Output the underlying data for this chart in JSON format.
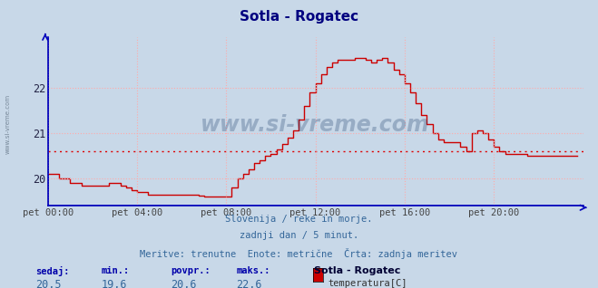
{
  "title": "Sotla - Rogatec",
  "title_color": "#000080",
  "background_color": "#c8d8e8",
  "plot_bg_color": "#c8d8e8",
  "line_color": "#cc0000",
  "avg_line_color": "#dd0000",
  "grid_color": "#ffaaaa",
  "axis_color": "#0000bb",
  "yticks": [
    20,
    21,
    22
  ],
  "ylim": [
    19.4,
    23.1
  ],
  "xlim_hours": [
    0,
    24
  ],
  "xtick_labels": [
    "pet 00:00",
    "pet 04:00",
    "pet 08:00",
    "pet 12:00",
    "pet 16:00",
    "pet 20:00"
  ],
  "xtick_positions": [
    0,
    4,
    8,
    12,
    16,
    20
  ],
  "avg_value": 20.6,
  "watermark_text": "www.si-vreme.com",
  "subtitle_lines": [
    "Slovenija / reke in morje.",
    "zadnji dan / 5 minut.",
    "Meritve: trenutne  Enote: metrične  Črta: zadnja meritev"
  ],
  "footer_labels": [
    "sedaj:",
    "min.:",
    "povpr.:",
    "maks.:"
  ],
  "footer_values": [
    "20,5",
    "19,6",
    "20,6",
    "22,6"
  ],
  "legend_station": "Sotla - Rogatec",
  "legend_label": "temperatura[C]",
  "legend_color": "#cc0000",
  "watermark_color": "#1a3a6a",
  "left_label": "www.si-vreme.com",
  "time_series": [
    [
      0.0,
      20.1
    ],
    [
      0.25,
      20.1
    ],
    [
      0.5,
      20.0
    ],
    [
      0.75,
      20.0
    ],
    [
      1.0,
      19.9
    ],
    [
      1.25,
      19.9
    ],
    [
      1.5,
      19.85
    ],
    [
      1.75,
      19.85
    ],
    [
      2.0,
      19.85
    ],
    [
      2.25,
      19.85
    ],
    [
      2.5,
      19.85
    ],
    [
      2.75,
      19.9
    ],
    [
      3.0,
      19.9
    ],
    [
      3.25,
      19.85
    ],
    [
      3.5,
      19.8
    ],
    [
      3.75,
      19.75
    ],
    [
      4.0,
      19.7
    ],
    [
      4.25,
      19.7
    ],
    [
      4.5,
      19.65
    ],
    [
      4.75,
      19.65
    ],
    [
      5.0,
      19.65
    ],
    [
      5.25,
      19.65
    ],
    [
      5.5,
      19.65
    ],
    [
      5.75,
      19.65
    ],
    [
      6.0,
      19.65
    ],
    [
      6.25,
      19.65
    ],
    [
      6.5,
      19.65
    ],
    [
      6.75,
      19.62
    ],
    [
      7.0,
      19.6
    ],
    [
      7.25,
      19.6
    ],
    [
      7.5,
      19.6
    ],
    [
      7.75,
      19.6
    ],
    [
      8.0,
      19.6
    ],
    [
      8.1,
      19.6
    ],
    [
      8.25,
      19.8
    ],
    [
      8.5,
      20.0
    ],
    [
      8.75,
      20.1
    ],
    [
      9.0,
      20.2
    ],
    [
      9.25,
      20.35
    ],
    [
      9.5,
      20.4
    ],
    [
      9.75,
      20.5
    ],
    [
      10.0,
      20.55
    ],
    [
      10.25,
      20.65
    ],
    [
      10.5,
      20.75
    ],
    [
      10.75,
      20.9
    ],
    [
      11.0,
      21.05
    ],
    [
      11.25,
      21.3
    ],
    [
      11.5,
      21.6
    ],
    [
      11.75,
      21.9
    ],
    [
      12.0,
      22.1
    ],
    [
      12.25,
      22.3
    ],
    [
      12.5,
      22.45
    ],
    [
      12.75,
      22.55
    ],
    [
      13.0,
      22.6
    ],
    [
      13.25,
      22.6
    ],
    [
      13.5,
      22.6
    ],
    [
      13.75,
      22.65
    ],
    [
      14.0,
      22.65
    ],
    [
      14.25,
      22.6
    ],
    [
      14.5,
      22.55
    ],
    [
      14.75,
      22.6
    ],
    [
      15.0,
      22.65
    ],
    [
      15.25,
      22.55
    ],
    [
      15.5,
      22.4
    ],
    [
      15.75,
      22.3
    ],
    [
      16.0,
      22.1
    ],
    [
      16.25,
      21.9
    ],
    [
      16.5,
      21.65
    ],
    [
      16.75,
      21.4
    ],
    [
      17.0,
      21.2
    ],
    [
      17.25,
      21.0
    ],
    [
      17.5,
      20.85
    ],
    [
      17.75,
      20.8
    ],
    [
      18.0,
      20.8
    ],
    [
      18.25,
      20.8
    ],
    [
      18.5,
      20.7
    ],
    [
      18.75,
      20.6
    ],
    [
      19.0,
      21.0
    ],
    [
      19.25,
      21.05
    ],
    [
      19.5,
      21.0
    ],
    [
      19.75,
      20.85
    ],
    [
      20.0,
      20.7
    ],
    [
      20.25,
      20.6
    ],
    [
      20.5,
      20.55
    ],
    [
      20.75,
      20.55
    ],
    [
      21.0,
      20.55
    ],
    [
      21.25,
      20.55
    ],
    [
      21.5,
      20.5
    ],
    [
      21.75,
      20.5
    ],
    [
      22.0,
      20.5
    ],
    [
      22.25,
      20.5
    ],
    [
      22.5,
      20.5
    ],
    [
      22.75,
      20.5
    ],
    [
      23.0,
      20.5
    ],
    [
      23.25,
      20.5
    ],
    [
      23.5,
      20.5
    ],
    [
      23.75,
      20.5
    ]
  ]
}
